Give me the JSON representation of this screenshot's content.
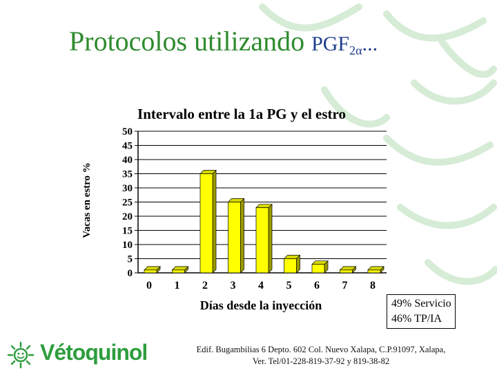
{
  "slide": {
    "title_main": "Protocolos utilizando",
    "title_pgf": "PGF",
    "title_sub": "2α",
    "title_suffix": "..."
  },
  "summary": {
    "line1": "49% Servicio",
    "line2": "46% TP/IA"
  },
  "footer": {
    "line1": "Edif. Bugambilias 6 Depto. 602 Col. Nuevo Xalapa, C.P.91097, Xalapa,",
    "line2": "Ver. Tel/01-228-819-37-92 y 819-38-82"
  },
  "logo": {
    "text": "Vétoquinol",
    "icon": "sun-logo-icon"
  },
  "colors": {
    "bar": "#ffff00",
    "bar_side": "#9a9a00",
    "title": "#2e8b2e",
    "logo": "#2e9e3e",
    "decoration": "#cfe9cf"
  },
  "chart_data": {
    "type": "bar",
    "title": "Intervalo entre la 1a PG y el estro",
    "xlabel": "Días desde la inyección",
    "ylabel": "Vacas en estro %",
    "categories": [
      "0",
      "1",
      "2",
      "3",
      "4",
      "5",
      "6",
      "7",
      "8"
    ],
    "values": [
      1,
      1,
      35,
      25,
      23,
      5,
      3,
      1,
      1
    ],
    "ylim": [
      0,
      50
    ],
    "yticks": [
      "0",
      "5",
      "10",
      "15",
      "20",
      "25",
      "30",
      "35",
      "40",
      "45",
      "50"
    ],
    "grid": true,
    "legend": "none"
  }
}
